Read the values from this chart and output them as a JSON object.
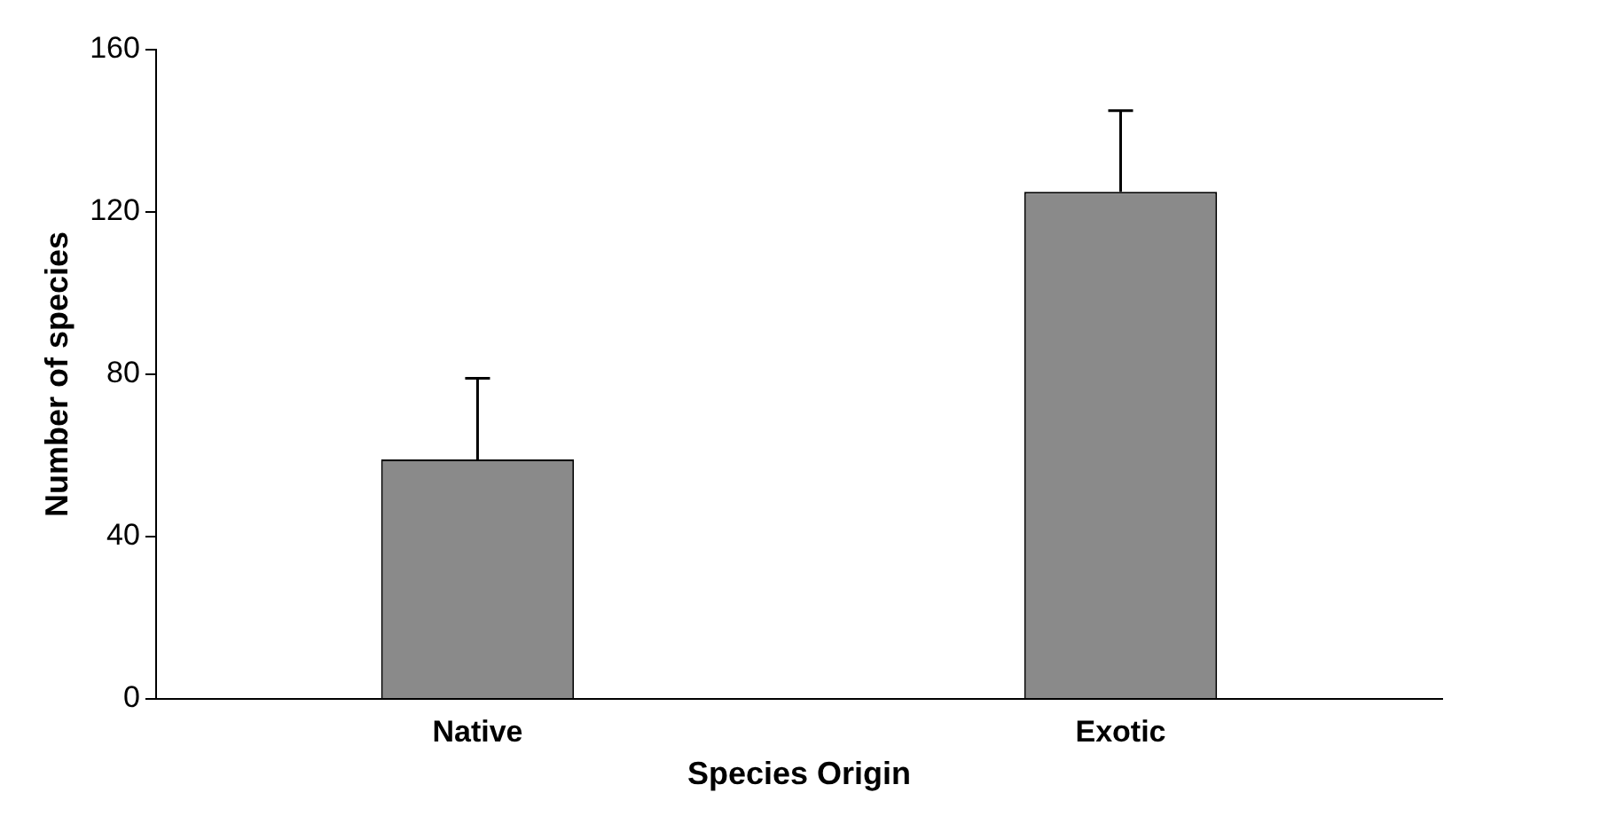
{
  "chart_data": {
    "type": "bar",
    "xlabel": "Species Origin",
    "ylabel": "Number of species",
    "categories": [
      "Native",
      "Exotic"
    ],
    "values": [
      59,
      125
    ],
    "color": "#8a8a8a",
    "errors": [
      [
        59,
        79
      ],
      [
        125,
        145
      ]
    ],
    "ylim": [
      0,
      160
    ],
    "yticks": [
      0,
      40,
      80,
      120,
      160
    ],
    "grid": false,
    "legend": false
  }
}
